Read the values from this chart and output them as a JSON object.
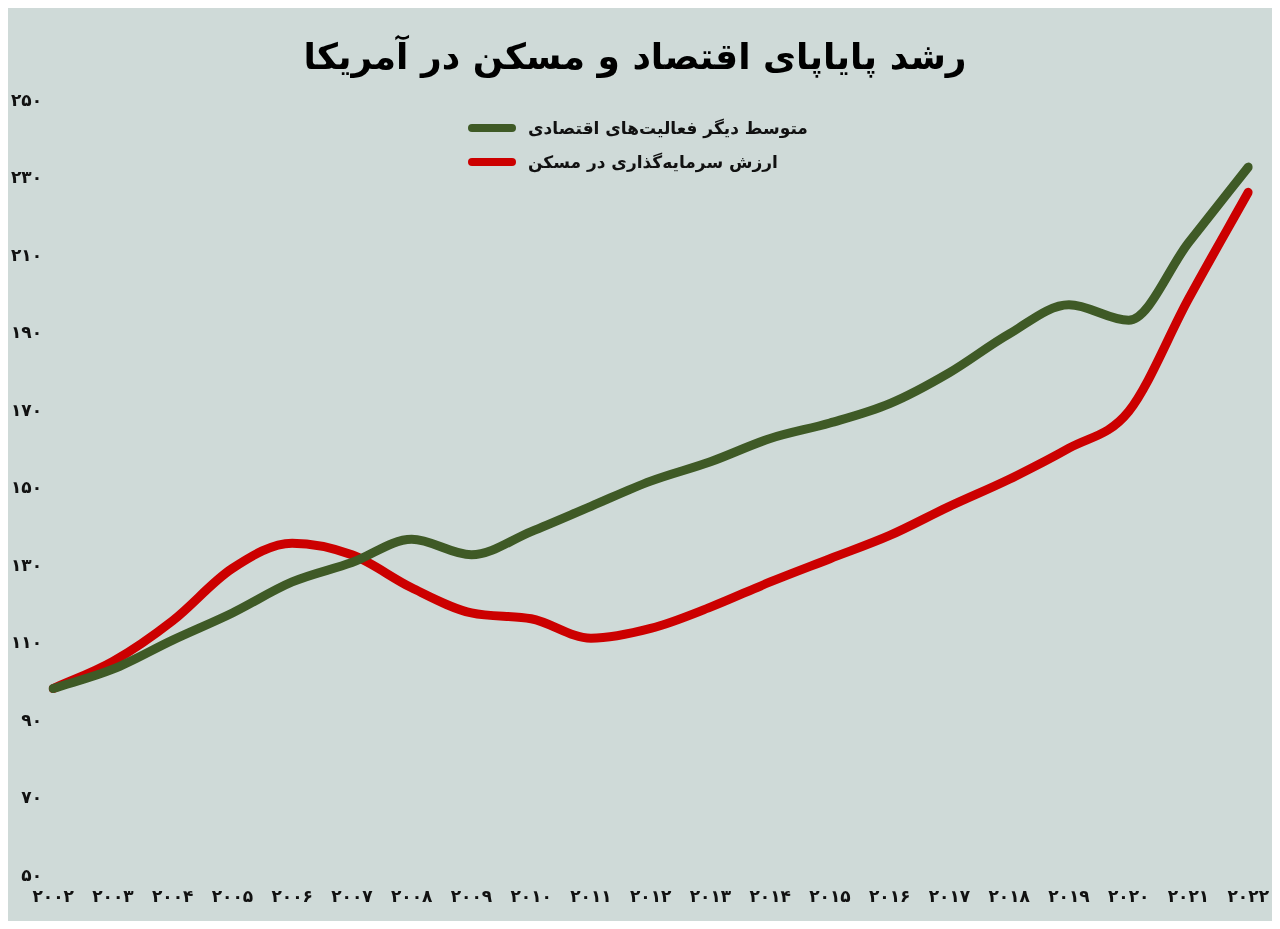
{
  "chart_data": {
    "type": "line",
    "title": "رشد پایاپای اقتصاد و مسکن در آمریکا",
    "categories": [
      "۲۰۰۲",
      "۲۰۰۳",
      "۲۰۰۴",
      "۲۰۰۵",
      "۲۰۰۶",
      "۲۰۰۷",
      "۲۰۰۸",
      "۲۰۰۹",
      "۲۰۱۰",
      "۲۰۱۱",
      "۲۰۱۲",
      "۲۰۱۳",
      "۲۰۱۴",
      "۲۰۱۵",
      "۲۰۱۶",
      "۲۰۱۷",
      "۲۰۱۸",
      "۲۰۱۹",
      "۲۰۲۰",
      "۲۰۲۱",
      "۲۰۲۲"
    ],
    "series": [
      {
        "name": "متوسط دیگر فعالیت‌های اقتصادی",
        "color": "#3f5a26",
        "values": [
          98.5,
          103.5,
          111,
          118,
          126,
          131,
          137,
          133,
          139,
          145.5,
          152,
          157,
          163,
          167,
          172,
          180,
          190,
          197.5,
          193.5,
          213.5,
          233
        ]
      },
      {
        "name": "ارزش سرمایه‌گذاری در مسکن",
        "color": "#cc0000",
        "values": [
          98.5,
          105.5,
          116,
          129.5,
          136,
          133,
          124.5,
          118,
          116.5,
          111.5,
          114,
          119.5,
          126,
          132,
          138,
          145.5,
          152.5,
          160.5,
          170,
          199,
          226.5
        ]
      }
    ],
    "ylim": [
      50,
      250
    ],
    "yticks": [
      {
        "value": 50,
        "label": "۵۰"
      },
      {
        "value": 70,
        "label": "۷۰"
      },
      {
        "value": 90,
        "label": "۹۰"
      },
      {
        "value": 110,
        "label": "۱۱۰"
      },
      {
        "value": 130,
        "label": "۱۳۰"
      },
      {
        "value": 150,
        "label": "۱۵۰"
      },
      {
        "value": 170,
        "label": "۱۷۰"
      },
      {
        "value": 190,
        "label": "۱۹۰"
      },
      {
        "value": 210,
        "label": "۲۱۰"
      },
      {
        "value": 230,
        "label": "۲۳۰"
      },
      {
        "value": 250,
        "label": "۲۵۰"
      }
    ],
    "grid": false,
    "legend": "top",
    "marker": "none",
    "line_style": "solid"
  }
}
